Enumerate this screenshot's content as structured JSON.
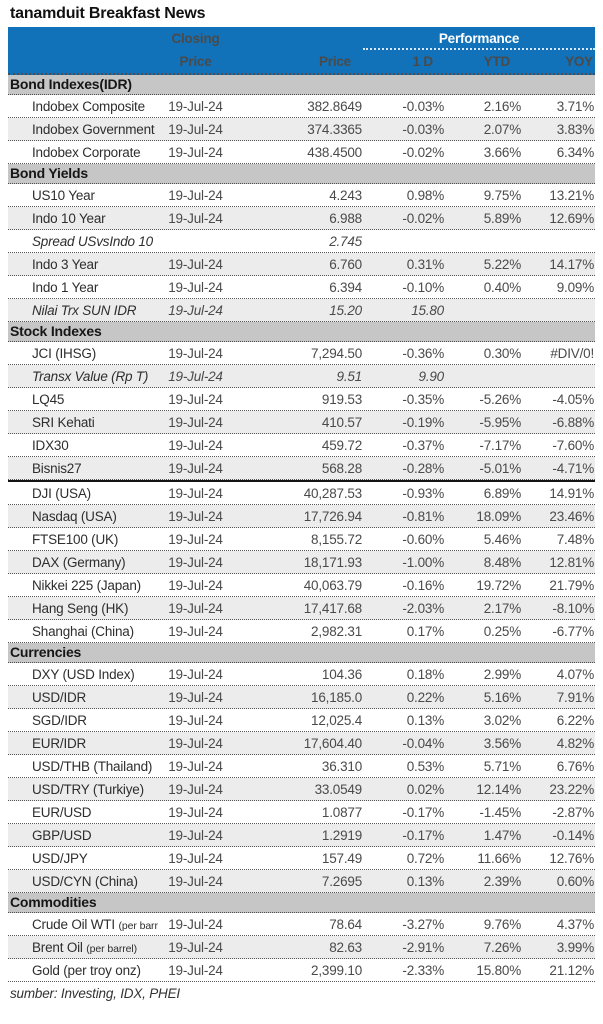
{
  "title": "tanamduit Breakfast News",
  "footer": "sumber: Investing, IDX, PHEI",
  "colors": {
    "header_blue": "#1272b9",
    "section_gray": "#c6c6c6",
    "row_stripe": "#ececec",
    "divider_black": "#141414"
  },
  "table_header": {
    "closing_line1": "Closing",
    "closing_line2": "Price",
    "price": "Price",
    "performance": "Performance",
    "cols": [
      "1 D",
      "YTD",
      "YOY"
    ]
  },
  "sections": [
    {
      "name": "Bond Indexes(IDR)",
      "rows": [
        {
          "label": "Indobex Composite",
          "date": "19-Jul-24",
          "price": "382.8649",
          "d1": "-0.03%",
          "ytd": "2.16%",
          "yoy": "3.71%"
        },
        {
          "label": "Indobex Government",
          "date": "19-Jul-24",
          "price": "374.3365",
          "d1": "-0.03%",
          "ytd": "2.07%",
          "yoy": "3.83%"
        },
        {
          "label": "Indobex Corporate",
          "date": "19-Jul-24",
          "price": "438.4500",
          "d1": "-0.02%",
          "ytd": "3.66%",
          "yoy": "6.34%"
        }
      ]
    },
    {
      "name": "Bond Yields",
      "rows": [
        {
          "label": "US10 Year",
          "date": "19-Jul-24",
          "price": "4.243",
          "d1": "0.98%",
          "ytd": "9.75%",
          "yoy": "13.21%"
        },
        {
          "label": "Indo 10 Year",
          "date": "19-Jul-24",
          "price": "6.988",
          "d1": "-0.02%",
          "ytd": "5.89%",
          "yoy": "12.69%"
        },
        {
          "label": "Spread USvsIndo 10 Y",
          "date": "",
          "price": "2.745",
          "d1": "",
          "ytd": "",
          "yoy": "",
          "italic": true
        },
        {
          "label": "Indo 3 Year",
          "date": "19-Jul-24",
          "price": "6.760",
          "d1": "0.31%",
          "ytd": "5.22%",
          "yoy": "14.17%"
        },
        {
          "label": "Indo 1 Year",
          "date": "19-Jul-24",
          "price": "6.394",
          "d1": "-0.10%",
          "ytd": "0.40%",
          "yoy": "9.09%"
        },
        {
          "label": "Nilai Trx SUN IDR",
          "date": "19-Jul-24",
          "price": "15.20",
          "d1": "15.80",
          "ytd": "",
          "yoy": "",
          "italic": true
        }
      ]
    },
    {
      "name": "Stock Indexes",
      "rows": [
        {
          "label": "JCI (IHSG)",
          "date": "19-Jul-24",
          "price": "7,294.50",
          "d1": "-0.36%",
          "ytd": "0.30%",
          "yoy": "#DIV/0!"
        },
        {
          "label": "Transx Value (Rp T)",
          "date": "19-Jul-24",
          "price": "9.51",
          "d1": "9.90",
          "ytd": "",
          "yoy": "",
          "italic": true
        },
        {
          "label": "LQ45",
          "date": "19-Jul-24",
          "price": "919.53",
          "d1": "-0.35%",
          "ytd": "-5.26%",
          "yoy": "-4.05%"
        },
        {
          "label": "SRI Kehati",
          "date": "19-Jul-24",
          "price": "410.57",
          "d1": "-0.19%",
          "ytd": "-5.95%",
          "yoy": "-6.88%"
        },
        {
          "label": "IDX30",
          "date": "19-Jul-24",
          "price": "459.72",
          "d1": "-0.37%",
          "ytd": "-7.17%",
          "yoy": "-7.60%"
        },
        {
          "label": "Bisnis27",
          "date": "19-Jul-24",
          "price": "568.28",
          "d1": "-0.28%",
          "ytd": "-5.01%",
          "yoy": "-4.71%"
        },
        {
          "label": "DJI (USA)",
          "date": "19-Jul-24",
          "price": "40,287.53",
          "d1": "-0.93%",
          "ytd": "6.89%",
          "yoy": "14.91%",
          "divider_above": true
        },
        {
          "label": "Nasdaq (USA)",
          "date": "19-Jul-24",
          "price": "17,726.94",
          "d1": "-0.81%",
          "ytd": "18.09%",
          "yoy": "23.46%"
        },
        {
          "label": "FTSE100 (UK)",
          "date": "19-Jul-24",
          "price": "8,155.72",
          "d1": "-0.60%",
          "ytd": "5.46%",
          "yoy": "7.48%"
        },
        {
          "label": "DAX (Germany)",
          "date": "19-Jul-24",
          "price": "18,171.93",
          "d1": "-1.00%",
          "ytd": "8.48%",
          "yoy": "12.81%"
        },
        {
          "label": "Nikkei 225 (Japan)",
          "date": "19-Jul-24",
          "price": "40,063.79",
          "d1": "-0.16%",
          "ytd": "19.72%",
          "yoy": "21.79%"
        },
        {
          "label": "Hang Seng (HK)",
          "date": "19-Jul-24",
          "price": "17,417.68",
          "d1": "-2.03%",
          "ytd": "2.17%",
          "yoy": "-8.10%"
        },
        {
          "label": "Shanghai (China)",
          "date": "19-Jul-24",
          "price": "2,982.31",
          "d1": "0.17%",
          "ytd": "0.25%",
          "yoy": "-6.77%"
        }
      ]
    },
    {
      "name": "Currencies",
      "rows": [
        {
          "label": "DXY (USD Index)",
          "date": "19-Jul-24",
          "price": "104.36",
          "d1": "0.18%",
          "ytd": "2.99%",
          "yoy": "4.07%"
        },
        {
          "label": "USD/IDR",
          "date": "19-Jul-24",
          "price": "16,185.0",
          "d1": "0.22%",
          "ytd": "5.16%",
          "yoy": "7.91%"
        },
        {
          "label": "SGD/IDR",
          "date": "19-Jul-24",
          "price": "12,025.4",
          "d1": "0.13%",
          "ytd": "3.02%",
          "yoy": "6.22%"
        },
        {
          "label": "EUR/IDR",
          "date": "19-Jul-24",
          "price": "17,604.40",
          "d1": "-0.04%",
          "ytd": "3.56%",
          "yoy": "4.82%"
        },
        {
          "label": "USD/THB (Thailand)",
          "date": "19-Jul-24",
          "price": "36.310",
          "d1": "0.53%",
          "ytd": "5.71%",
          "yoy": "6.76%"
        },
        {
          "label": "USD/TRY (Turkiye)",
          "date": "19-Jul-24",
          "price": "33.0549",
          "d1": "0.02%",
          "ytd": "12.14%",
          "yoy": "23.22%"
        },
        {
          "label": "EUR/USD",
          "date": "19-Jul-24",
          "price": "1.0877",
          "d1": "-0.17%",
          "ytd": "-1.45%",
          "yoy": "-2.87%"
        },
        {
          "label": "GBP/USD",
          "date": "19-Jul-24",
          "price": "1.2919",
          "d1": "-0.17%",
          "ytd": "1.47%",
          "yoy": "-0.14%"
        },
        {
          "label": "USD/JPY",
          "date": "19-Jul-24",
          "price": "157.49",
          "d1": "0.72%",
          "ytd": "11.66%",
          "yoy": "12.76%"
        },
        {
          "label": "USD/CYN (China)",
          "date": "19-Jul-24",
          "price": "7.2695",
          "d1": "0.13%",
          "ytd": "2.39%",
          "yoy": "0.60%"
        }
      ]
    },
    {
      "name": "Commodities",
      "rows": [
        {
          "label": "Crude Oil WTI",
          "note": "(per barrel)",
          "date": "19-Jul-24",
          "price": "78.64",
          "d1": "-3.27%",
          "ytd": "9.76%",
          "yoy": "4.37%"
        },
        {
          "label": "Brent Oil",
          "note": "(per barrel)",
          "date": "19-Jul-24",
          "price": "82.63",
          "d1": "-2.91%",
          "ytd": "7.26%",
          "yoy": "3.99%"
        },
        {
          "label": "Gold (per troy onz)",
          "date": "19-Jul-24",
          "price": "2,399.10",
          "d1": "-2.33%",
          "ytd": "15.80%",
          "yoy": "21.12%"
        }
      ]
    }
  ]
}
